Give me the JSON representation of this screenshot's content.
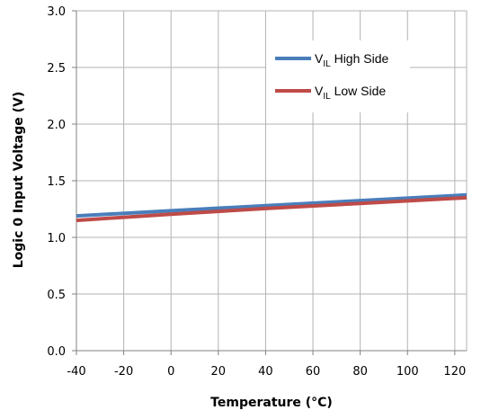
{
  "chart_data": {
    "type": "line",
    "title": "",
    "xlabel": "Temperature (°C)",
    "ylabel": "Logic 0 Input Voltage (V)",
    "xlim": [
      -40,
      125
    ],
    "ylim": [
      0,
      3
    ],
    "x_ticks": [
      -40,
      -20,
      0,
      20,
      40,
      60,
      80,
      100,
      120
    ],
    "x_tick_labels": [
      "-40",
      "-20",
      "0",
      "20",
      "40",
      "60",
      "80",
      "100",
      "120"
    ],
    "y_ticks": [
      0,
      0.5,
      1.0,
      1.5,
      2.0,
      2.5,
      3.0
    ],
    "y_tick_labels": [
      "0.0",
      "0.5",
      "1.0",
      "1.5",
      "2.0",
      "2.5",
      "3.0"
    ],
    "grid": true,
    "legend_position": "top-right",
    "series": [
      {
        "legend_main": "V",
        "legend_sub": "IL",
        "legend_rest": " High Side",
        "color": "#4A7EBB",
        "x": [
          -40,
          0,
          40,
          80,
          125
        ],
        "y": [
          1.19,
          1.235,
          1.28,
          1.325,
          1.375
        ]
      },
      {
        "legend_main": "V",
        "legend_sub": "IL",
        "legend_rest": " Low Side",
        "color": "#BE4B48",
        "x": [
          -40,
          0,
          40,
          80,
          125
        ],
        "y": [
          1.15,
          1.205,
          1.255,
          1.3,
          1.35
        ]
      }
    ]
  }
}
